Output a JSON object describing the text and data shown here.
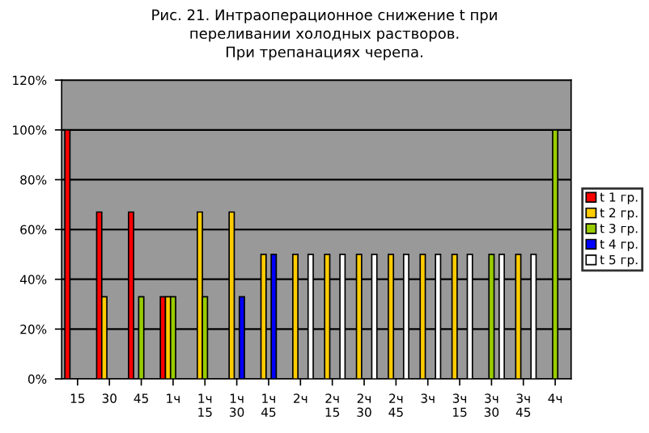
{
  "chart_data": {
    "type": "bar",
    "title": "Рис. 21. Интраоперационное снижение t при\nпереливании холодных растворов.\nПри трепанациях черепа.",
    "categories": [
      "15",
      "30",
      "45",
      "1ч",
      "1ч\n15",
      "1ч\n30",
      "1ч\n45",
      "2ч",
      "2ч\n15",
      "2ч\n30",
      "2ч\n45",
      "3ч",
      "3ч\n15",
      "3ч\n30",
      "3ч\n45",
      "4ч"
    ],
    "series": [
      {
        "name": "t 1 гр.",
        "color": "#ff0000",
        "values": [
          100,
          67,
          67,
          33,
          null,
          null,
          null,
          null,
          null,
          null,
          null,
          null,
          null,
          null,
          null,
          null
        ]
      },
      {
        "name": "t 2 гр.",
        "color": "#ffcc00",
        "values": [
          null,
          33,
          null,
          33,
          67,
          67,
          50,
          50,
          50,
          50,
          50,
          50,
          50,
          null,
          50,
          null
        ]
      },
      {
        "name": "t 3 гр.",
        "color": "#99cc00",
        "values": [
          null,
          null,
          33,
          33,
          33,
          null,
          null,
          null,
          null,
          null,
          null,
          null,
          null,
          50,
          null,
          100
        ]
      },
      {
        "name": "t 4 гр.",
        "color": "#0000ff",
        "values": [
          null,
          null,
          null,
          null,
          null,
          33,
          50,
          null,
          null,
          null,
          null,
          null,
          null,
          null,
          null,
          null
        ]
      },
      {
        "name": "t 5 гр.",
        "color": "#ffffff",
        "values": [
          null,
          null,
          null,
          null,
          null,
          null,
          null,
          50,
          50,
          50,
          50,
          50,
          50,
          50,
          50,
          null
        ]
      }
    ],
    "ylim": [
      0,
      120
    ],
    "yticks": [
      {
        "value": 0,
        "label": "0%"
      },
      {
        "value": 20,
        "label": "20%"
      },
      {
        "value": 40,
        "label": "40%"
      },
      {
        "value": 60,
        "label": "60%"
      },
      {
        "value": 80,
        "label": "80%"
      },
      {
        "value": 100,
        "label": "100%"
      },
      {
        "value": 120,
        "label": "120%"
      }
    ],
    "grid": "y",
    "legend": "right"
  }
}
